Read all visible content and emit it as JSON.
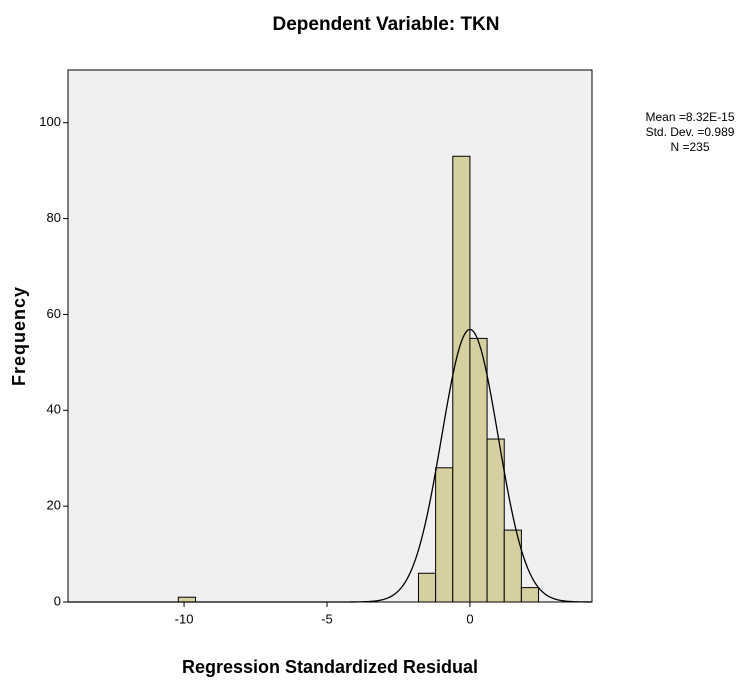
{
  "chart_data": {
    "type": "histogram",
    "title": "Dependent Variable: TKN",
    "x_label": "Regression Standardized Residual",
    "y_label": "Frequency",
    "bins": [
      -10.2,
      -9.6,
      -9.0,
      -8.4,
      -7.8,
      -7.2,
      -6.6,
      -6.0,
      -5.4,
      -4.8,
      -4.2,
      -3.6,
      -3.0,
      -2.4,
      -1.8,
      -1.2,
      -0.6,
      0,
      0.6,
      1.2,
      1.8,
      2.4
    ],
    "values": [
      1,
      0,
      0,
      0,
      0,
      0,
      0,
      0,
      0,
      0,
      0,
      0,
      0,
      0,
      6,
      28,
      93,
      55,
      34,
      15,
      3
    ],
    "color": "#d6d0a0",
    "xlim": [
      -14.06,
      4.27
    ],
    "ylim": [
      0,
      111
    ],
    "xticks": [
      -10,
      -5,
      0
    ],
    "yticks": [
      0,
      20,
      40,
      60,
      80,
      100
    ],
    "stats": {
      "mean": {
        "value": 8.32e-15,
        "label": "Mean =8.32E-15"
      },
      "sd": {
        "value": 0.989,
        "label": "Std. Dev. =0.989"
      },
      "n": {
        "value": 235,
        "label": "N =235"
      }
    }
  }
}
